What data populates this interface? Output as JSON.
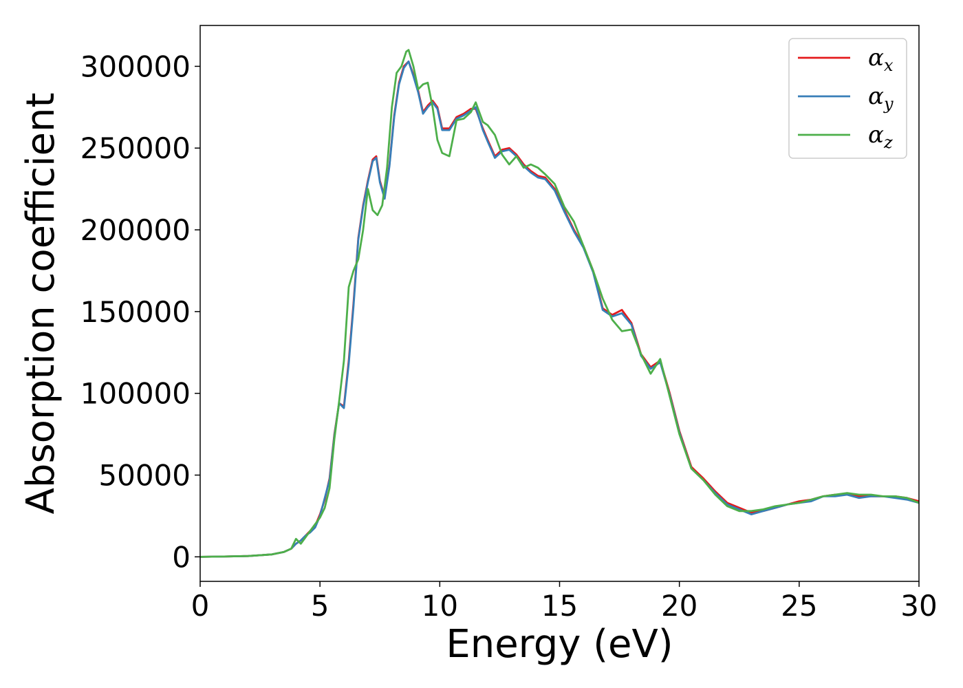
{
  "chart_data": {
    "type": "line",
    "title": "",
    "xlabel": "Energy (eV)",
    "ylabel": "Absorption coefficient",
    "xlim": [
      0,
      30
    ],
    "ylim": [
      -15000,
      325000
    ],
    "xticks": [
      0,
      5,
      10,
      15,
      20,
      25,
      30
    ],
    "yticks": [
      0,
      50000,
      100000,
      150000,
      200000,
      250000,
      300000
    ],
    "grid": false,
    "legend_position": "top-right",
    "series": [
      {
        "name": "α",
        "subscript": "x",
        "color": "#e41a1c",
        "x": [
          0,
          1,
          2,
          3,
          3.5,
          3.8,
          4.0,
          4.2,
          4.4,
          4.6,
          4.8,
          5.0,
          5.2,
          5.4,
          5.6,
          5.8,
          6.0,
          6.2,
          6.4,
          6.6,
          6.8,
          7.0,
          7.2,
          7.35,
          7.5,
          7.7,
          7.9,
          8.1,
          8.3,
          8.5,
          8.7,
          8.9,
          9.1,
          9.3,
          9.5,
          9.7,
          9.9,
          10.1,
          10.4,
          10.7,
          11.0,
          11.3,
          11.5,
          11.8,
          12.0,
          12.3,
          12.6,
          12.9,
          13.2,
          13.5,
          13.8,
          14.1,
          14.4,
          14.8,
          15.2,
          15.6,
          16.0,
          16.4,
          16.8,
          17.2,
          17.6,
          18.0,
          18.4,
          18.8,
          19.2,
          19.6,
          20.0,
          20.5,
          21.0,
          21.5,
          22.0,
          22.5,
          23.0,
          23.5,
          24.0,
          24.5,
          25.0,
          25.5,
          26.0,
          26.5,
          27.0,
          27.5,
          28.0,
          28.5,
          29.0,
          29.5,
          30.0
        ],
        "y": [
          0,
          200,
          500,
          1500,
          3000,
          5000,
          8000,
          10000,
          13000,
          16000,
          19000,
          26000,
          35000,
          48000,
          75000,
          94000,
          92000,
          120000,
          155000,
          195000,
          215000,
          230000,
          243000,
          245000,
          230000,
          220000,
          240000,
          270000,
          290000,
          300000,
          303000,
          295000,
          285000,
          272000,
          276000,
          279000,
          275000,
          262000,
          262000,
          269000,
          271000,
          274000,
          274000,
          262000,
          255000,
          245000,
          249000,
          250000,
          246000,
          240000,
          236000,
          233000,
          232000,
          225000,
          212000,
          200000,
          190000,
          175000,
          152000,
          148000,
          151000,
          143000,
          124000,
          116000,
          120000,
          100000,
          77000,
          55000,
          48000,
          40000,
          33000,
          30000,
          27000,
          28000,
          30000,
          32000,
          34000,
          35000,
          37000,
          38000,
          38000,
          37000,
          37000,
          37000,
          37000,
          36000,
          34000
        ]
      },
      {
        "name": "α",
        "subscript": "y",
        "color": "#377eb8",
        "x": [
          0,
          1,
          2,
          3,
          3.5,
          3.8,
          4.0,
          4.2,
          4.4,
          4.6,
          4.8,
          5.0,
          5.2,
          5.4,
          5.6,
          5.8,
          6.0,
          6.2,
          6.4,
          6.6,
          6.8,
          7.0,
          7.2,
          7.35,
          7.5,
          7.7,
          7.9,
          8.1,
          8.3,
          8.5,
          8.7,
          8.9,
          9.1,
          9.3,
          9.5,
          9.7,
          9.9,
          10.1,
          10.4,
          10.7,
          11.0,
          11.3,
          11.5,
          11.8,
          12.0,
          12.3,
          12.6,
          12.9,
          13.2,
          13.5,
          13.8,
          14.1,
          14.4,
          14.8,
          15.2,
          15.6,
          16.0,
          16.4,
          16.8,
          17.2,
          17.6,
          18.0,
          18.4,
          18.8,
          19.2,
          19.6,
          20.0,
          20.5,
          21.0,
          21.5,
          22.0,
          22.5,
          23.0,
          23.5,
          24.0,
          24.5,
          25.0,
          25.5,
          26.0,
          26.5,
          27.0,
          27.5,
          28.0,
          28.5,
          29.0,
          29.5,
          30.0
        ],
        "y": [
          0,
          200,
          500,
          1500,
          3000,
          5000,
          8000,
          10000,
          13000,
          15000,
          18000,
          25000,
          36000,
          47000,
          74000,
          94000,
          91000,
          118000,
          153000,
          194000,
          214000,
          229000,
          242000,
          244000,
          229000,
          219000,
          239000,
          269000,
          289000,
          299000,
          303000,
          294000,
          284000,
          271000,
          275000,
          278000,
          274000,
          261000,
          261000,
          268000,
          270000,
          273000,
          275000,
          261000,
          254000,
          244000,
          248000,
          249000,
          245000,
          239000,
          235000,
          232000,
          231000,
          224000,
          211000,
          199000,
          189000,
          174000,
          151000,
          147000,
          149000,
          142000,
          123000,
          115000,
          119000,
          99000,
          76000,
          54000,
          47000,
          39000,
          32000,
          29000,
          26000,
          28000,
          30000,
          32000,
          33000,
          34000,
          37000,
          37000,
          38000,
          36000,
          37000,
          37000,
          36000,
          35000,
          33000
        ]
      },
      {
        "name": "α",
        "subscript": "z",
        "color": "#4daf4a",
        "x": [
          0,
          1,
          2,
          3,
          3.5,
          3.8,
          4.0,
          4.2,
          4.4,
          4.6,
          4.8,
          5.0,
          5.2,
          5.4,
          5.6,
          5.8,
          6.0,
          6.2,
          6.4,
          6.6,
          6.8,
          7.0,
          7.2,
          7.4,
          7.6,
          7.8,
          8.0,
          8.2,
          8.4,
          8.6,
          8.7,
          8.9,
          9.1,
          9.3,
          9.5,
          9.7,
          9.9,
          10.1,
          10.4,
          10.7,
          11.0,
          11.3,
          11.5,
          11.8,
          12.0,
          12.3,
          12.6,
          12.9,
          13.2,
          13.5,
          13.8,
          14.1,
          14.4,
          14.8,
          15.2,
          15.6,
          16.0,
          16.4,
          16.8,
          17.2,
          17.6,
          18.0,
          18.4,
          18.8,
          19.2,
          19.6,
          20.0,
          20.5,
          21.0,
          21.5,
          22.0,
          22.5,
          23.0,
          23.5,
          24.0,
          24.5,
          25.0,
          25.5,
          26.0,
          26.5,
          27.0,
          27.5,
          28.0,
          28.5,
          29.0,
          29.5,
          30.0
        ],
        "y": [
          0,
          200,
          500,
          1500,
          3000,
          5000,
          11000,
          8000,
          12000,
          16000,
          20000,
          24000,
          30000,
          42000,
          72000,
          95000,
          120000,
          165000,
          175000,
          182000,
          200000,
          225000,
          212000,
          209000,
          215000,
          238000,
          275000,
          296000,
          300000,
          309000,
          310000,
          300000,
          286000,
          289000,
          290000,
          275000,
          255000,
          247000,
          245000,
          267000,
          268000,
          272000,
          278000,
          266000,
          264000,
          258000,
          246000,
          240000,
          245000,
          238000,
          240000,
          238000,
          234000,
          228000,
          214000,
          205000,
          190000,
          175000,
          158000,
          145000,
          138000,
          139000,
          124000,
          112000,
          121000,
          98000,
          75000,
          54000,
          47000,
          38000,
          31000,
          28000,
          28000,
          29000,
          31000,
          32000,
          33000,
          35000,
          37000,
          38000,
          39000,
          38000,
          38000,
          37000,
          37000,
          36000,
          33000
        ]
      }
    ]
  }
}
